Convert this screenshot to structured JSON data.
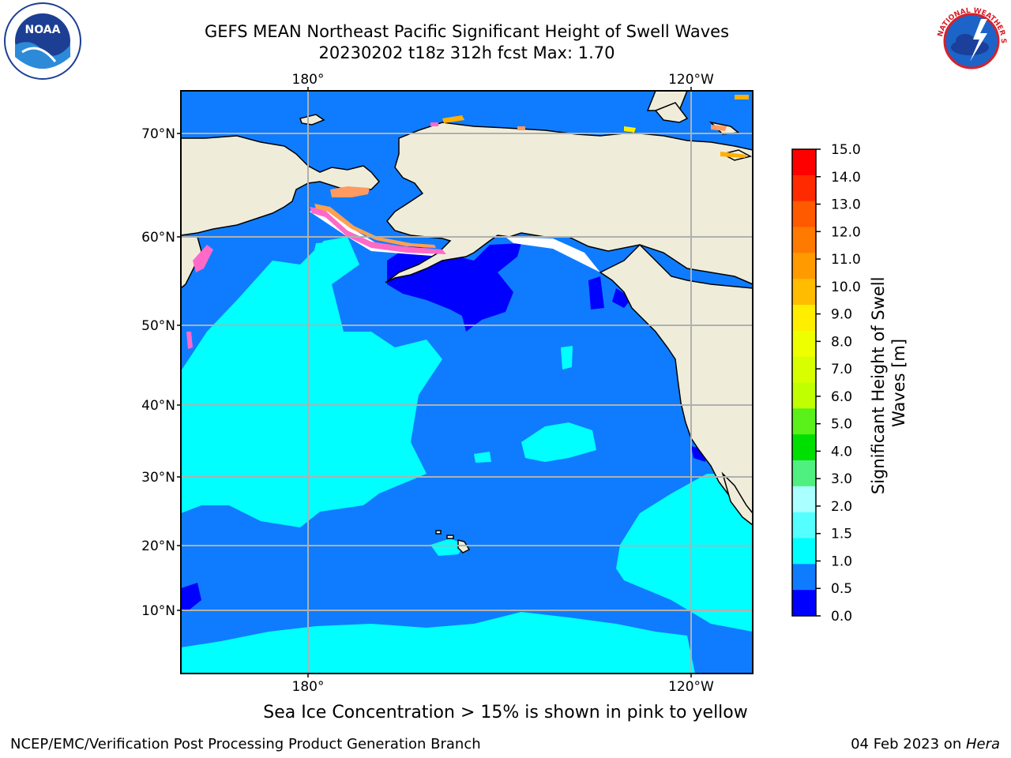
{
  "header": {
    "title_line1": "GEFS MEAN Northeast Pacific Significant Height of Swell Waves",
    "title_line2": "20230202 t18z 312h fcst   Max: 1.70"
  },
  "logos": {
    "left": {
      "icon": "noaa-logo",
      "text": "NOAA"
    },
    "right": {
      "icon": "nws-logo",
      "text": "NATIONAL WEATHER SERVICE"
    }
  },
  "map": {
    "projection": "Mercator",
    "lon_ticks": [
      "180°",
      "120°W"
    ],
    "lat_ticks": [
      "70°N",
      "60°N",
      "50°N",
      "40°N",
      "30°N",
      "20°N",
      "10°N"
    ],
    "land_color": "#efedda",
    "ocean_base_color": "#0f7cff",
    "grid": true
  },
  "colorbar": {
    "label": "Significant Height of Swell Waves [m]",
    "ticks": [
      "15.0",
      "14.0",
      "13.0",
      "12.0",
      "11.0",
      "10.0",
      "9.0",
      "8.0",
      "7.0",
      "6.0",
      "5.0",
      "4.0",
      "3.0",
      "2.0",
      "1.5",
      "1.0",
      "0.5",
      "0.0"
    ],
    "colors_top_to_bottom": [
      "#ff0000",
      "#ff2a00",
      "#ff5a00",
      "#ff7a00",
      "#ff9a00",
      "#ffbc00",
      "#ffee00",
      "#eeff00",
      "#d8ff00",
      "#bfff00",
      "#5af01a",
      "#00e000",
      "#50f080",
      "#aaffff",
      "#55ffff",
      "#00ffff",
      "#0f7cff",
      "#0000ff"
    ]
  },
  "chart_data": {
    "type": "heatmap",
    "title": "GEFS MEAN Northeast Pacific Significant Height of Swell Waves",
    "subtitle": "20230202 t18z 312h fcst   Max: 1.70",
    "max_value": 1.7,
    "units": "m",
    "colorbar_label": "Significant Height of Swell Waves [m]",
    "colorbar_range": [
      0.0,
      15.0
    ],
    "colorbar_ticks": [
      0.0,
      0.5,
      1.0,
      1.5,
      2.0,
      3.0,
      4.0,
      5.0,
      6.0,
      7.0,
      8.0,
      9.0,
      10.0,
      11.0,
      12.0,
      13.0,
      14.0,
      15.0
    ],
    "x_ticks": [
      "180°",
      "120°W"
    ],
    "y_ticks": [
      "70°N",
      "60°N",
      "50°N",
      "40°N",
      "30°N",
      "20°N",
      "10°N"
    ],
    "dominant_value_range": [
      0.5,
      1.0
    ],
    "secondary_value_range": [
      1.0,
      1.5
    ]
  },
  "notes": {
    "ice": "Sea Ice Concentration > 15% is shown in pink to yellow"
  },
  "footer": {
    "left": "NCEP/EMC/Verification Post Processing Product Generation Branch",
    "right_prefix": "04 Feb 2023 on ",
    "right_machine": "Hera"
  }
}
